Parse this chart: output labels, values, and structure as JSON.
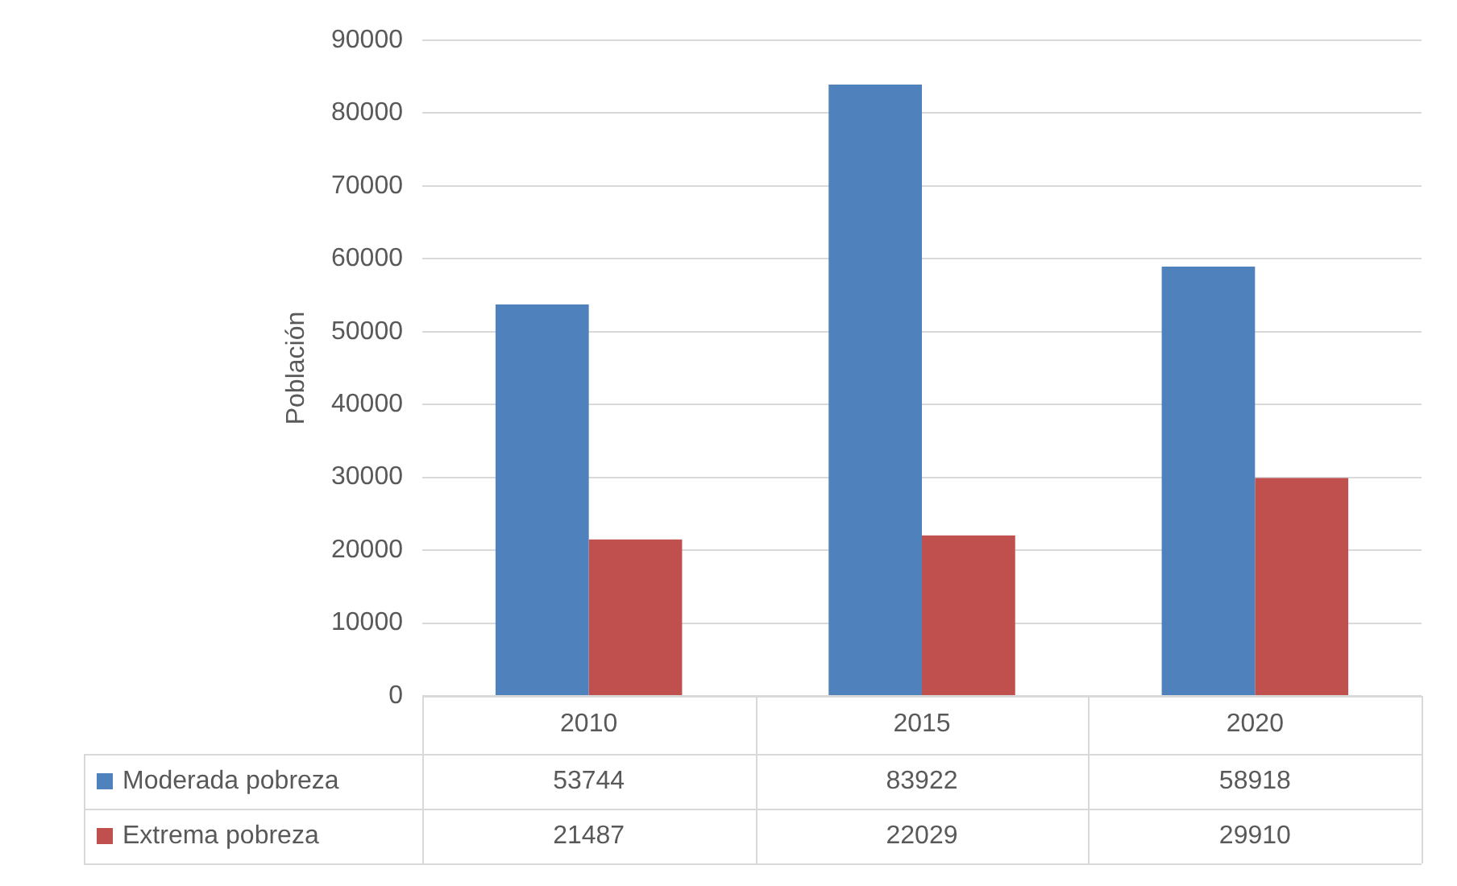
{
  "chart_data": {
    "type": "bar",
    "ylabel": "Población",
    "categories": [
      "2010",
      "2015",
      "2020"
    ],
    "series": [
      {
        "name": "Moderada pobreza",
        "color": "#4f81bd",
        "values": [
          53744,
          83922,
          58918
        ]
      },
      {
        "name": "Extrema pobreza",
        "color": "#c0504d",
        "values": [
          21487,
          22029,
          29910
        ]
      }
    ],
    "ylim": [
      0,
      90000
    ],
    "yticks": [
      0,
      10000,
      20000,
      30000,
      40000,
      50000,
      60000,
      70000,
      80000,
      90000
    ],
    "grid": "y",
    "legend": "bottom",
    "data_labels": true
  }
}
